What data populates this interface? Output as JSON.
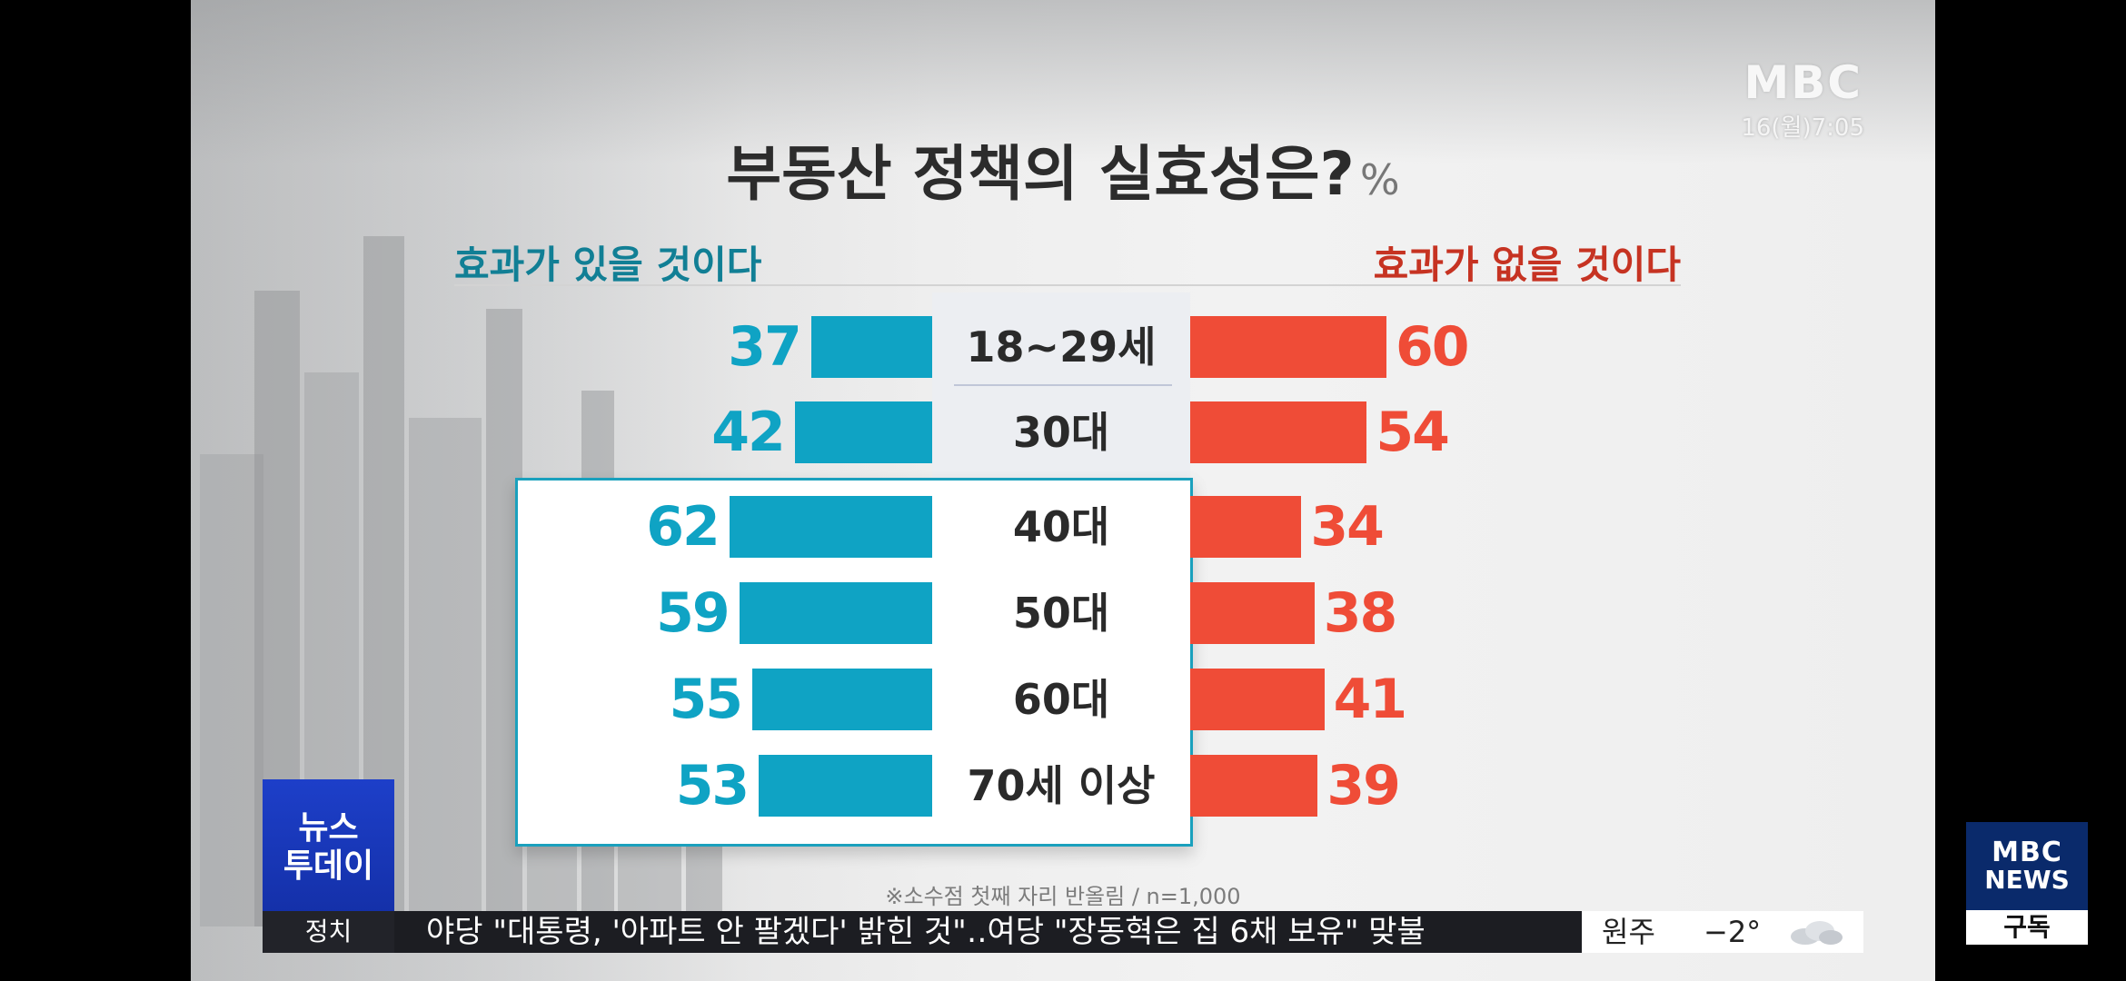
{
  "broadcast": {
    "logo": "MBC",
    "clock": "16(월)7:05"
  },
  "chart_data": {
    "type": "bar",
    "title": "부동산 정책의 실효성은?",
    "unit": "%",
    "categories": [
      "18~29세",
      "30대",
      "40대",
      "50대",
      "60대",
      "70세 이상"
    ],
    "series": [
      {
        "name": "효과가 있을 것이다",
        "values": [
          37,
          42,
          62,
          59,
          55,
          53
        ],
        "color": "#0fa3c4"
      },
      {
        "name": "효과가 없을 것이다",
        "values": [
          60,
          54,
          34,
          38,
          41,
          39
        ],
        "color": "#ef4c37"
      }
    ],
    "highlighted_categories": [
      "40대",
      "50대",
      "60대",
      "70세 이상"
    ],
    "footnote": "※소수점 첫째 자리 반올림 / n=1,000"
  },
  "program_badge": {
    "line1": "뉴스",
    "line2": "투데이"
  },
  "ticker": {
    "category": "정치",
    "headline": "야당 \"대통령, '아파트 안 팔겠다' 밝힌 것\"‥여당 \"장동혁은 집 6채 보유\" 맞불",
    "weather_city": "원주",
    "weather_temp": "−2°",
    "weather_icon": "cloud-icon"
  },
  "channel_logo": {
    "line1": "MBC",
    "line2": "NEWS",
    "subscribe_label": "구독"
  }
}
